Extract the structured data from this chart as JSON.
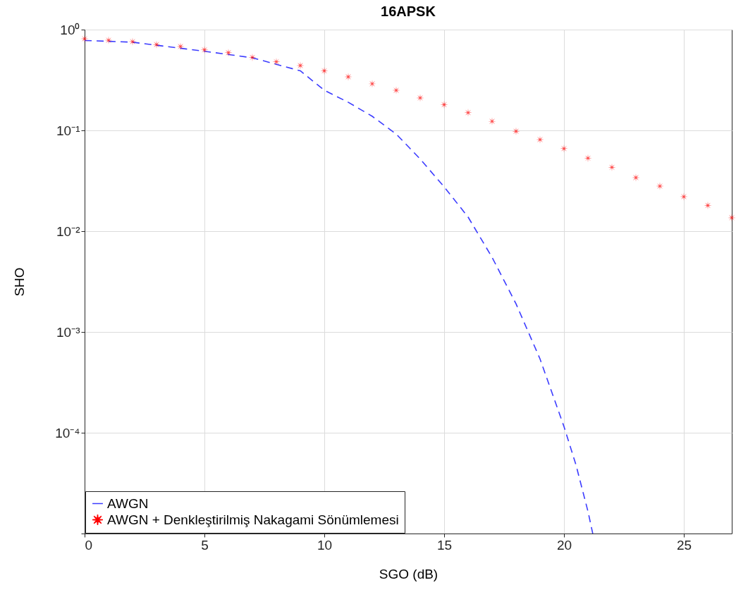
{
  "chart_data": {
    "type": "line",
    "title": "16APSK",
    "xlabel": "SGO (dB)",
    "ylabel": "SHO",
    "log": "y",
    "grid": true,
    "legend": "bottom left",
    "xlim": [
      0,
      27
    ],
    "xticks": [
      0,
      5,
      10,
      15,
      20,
      25
    ],
    "ylim": [
      1e-05,
      1
    ],
    "yticks": [
      {
        "value": 1,
        "label": "10⁰"
      },
      {
        "value": 0.1,
        "label": "10⁻¹"
      },
      {
        "value": 0.01,
        "label": "10⁻²"
      },
      {
        "value": 0.001,
        "label": "10⁻³"
      },
      {
        "value": 0.0001,
        "label": "10⁻⁴"
      },
      {
        "value": 1e-05,
        "label": null
      }
    ],
    "series": [
      {
        "name": "AWGN",
        "type": "line",
        "color": "#3c3cff",
        "line_style": "dashed",
        "marker": "none",
        "x": [
          0,
          2,
          5,
          7,
          9,
          10,
          11,
          12,
          13,
          14,
          15,
          16,
          17,
          18,
          19,
          20,
          20.5,
          21,
          21.2
        ],
        "values": [
          0.78,
          0.75,
          0.61,
          0.525,
          0.39,
          0.25,
          0.19,
          0.138,
          0.092,
          0.052,
          0.0275,
          0.0138,
          0.0055,
          0.0019,
          0.00054,
          0.000115,
          4.8e-05,
          1.66e-05,
          1e-05
        ]
      },
      {
        "name": "AWGN + Denkleştirilmiş Nakagami Sönümlemesi",
        "type": "scatter",
        "color": "#ff0000",
        "marker": "star",
        "x": [
          0,
          1,
          2,
          3,
          4,
          5,
          6,
          7,
          8,
          9,
          10,
          11,
          12,
          13,
          14,
          15,
          16,
          17,
          18,
          19,
          20,
          21,
          22,
          23,
          24,
          25,
          26,
          27
        ],
        "values": [
          0.81,
          0.785,
          0.76,
          0.71,
          0.68,
          0.63,
          0.59,
          0.53,
          0.48,
          0.44,
          0.39,
          0.34,
          0.29,
          0.25,
          0.21,
          0.18,
          0.15,
          0.123,
          0.098,
          0.081,
          0.066,
          0.053,
          0.043,
          0.034,
          0.028,
          0.022,
          0.018,
          0.0136
        ]
      }
    ]
  }
}
